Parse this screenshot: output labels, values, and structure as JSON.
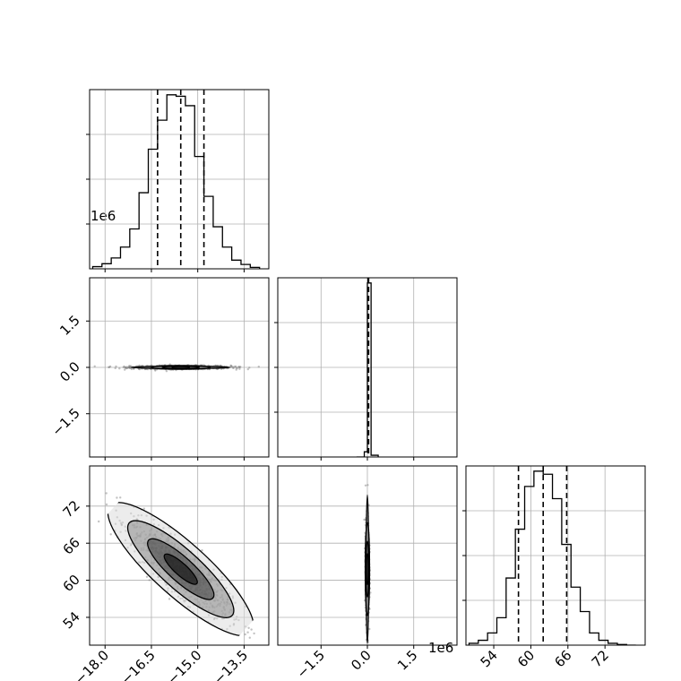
{
  "chart_data": {
    "type": "corner",
    "parameters": 3,
    "offset_label_y": "1e6",
    "offset_label_x": "1e6",
    "grid": true,
    "x_tick_labels": {
      "p0": [
        "−18.0",
        "−16.5",
        "−15.0",
        "−13.5"
      ],
      "p1": [
        "−1.5",
        "0.0",
        "1.5"
      ],
      "p2": [
        "54",
        "60",
        "66",
        "72"
      ]
    },
    "y_tick_labels": {
      "p1": [
        "1.5",
        "0.0",
        "−1.5"
      ],
      "p2": [
        "72",
        "66",
        "60",
        "54"
      ]
    },
    "x_ticks": {
      "p0": [
        -18.0,
        -16.5,
        -15.0,
        -13.5
      ],
      "p1": [
        -1.5,
        0.0,
        1.5
      ],
      "p2": [
        54,
        60,
        66,
        72
      ]
    },
    "y_ticks": {
      "p1": [
        1.5,
        0.0,
        -1.5
      ],
      "p2": [
        72,
        66,
        60,
        54
      ]
    },
    "ranges": {
      "p0": [
        -18.5,
        -12.7
      ],
      "p1": [
        -2.9,
        2.9
      ],
      "p2": [
        49.5,
        78.5
      ]
    },
    "histograms": [
      {
        "parameter": "p0",
        "bin_edges": [
          -18.4,
          -18.1,
          -17.8,
          -17.5,
          -17.2,
          -16.9,
          -16.6,
          -16.3,
          -16.0,
          -15.7,
          -15.4,
          -15.1,
          -14.8,
          -14.5,
          -14.2,
          -13.9,
          -13.6,
          -13.3,
          -13.0
        ],
        "counts": [
          3,
          7,
          15,
          30,
          55,
          105,
          165,
          205,
          240,
          238,
          225,
          155,
          100,
          58,
          30,
          12,
          6,
          2
        ],
        "quantiles": [
          -16.3,
          -15.55,
          -14.8
        ]
      },
      {
        "parameter": "p1",
        "bin_edges": [
          -0.35,
          -0.1,
          0.0,
          0.05,
          0.12,
          0.35
        ],
        "counts": [
          0,
          3,
          100,
          100,
          1
        ],
        "quantiles": [
          0.02,
          0.03,
          0.04
        ]
      },
      {
        "parameter": "p2",
        "bin_edges": [
          50.0,
          51.5,
          53.0,
          54.5,
          56.0,
          57.5,
          59.0,
          60.5,
          62.0,
          63.5,
          65.0,
          66.5,
          68.0,
          69.5,
          71.0,
          72.5,
          74.0,
          75.5,
          77.0
        ],
        "counts": [
          3,
          8,
          20,
          45,
          110,
          190,
          260,
          285,
          280,
          240,
          165,
          95,
          55,
          20,
          8,
          3,
          1,
          0
        ],
        "quantiles": [
          58.0,
          62.0,
          65.8
        ]
      }
    ],
    "scatter_panels": [
      {
        "x": "p0",
        "y": "p1",
        "center": [
          -15.55,
          0.0
        ],
        "spread": [
          0.8,
          0.03
        ],
        "correlation": 0.0,
        "contour_half_axes": [
          [
            0.28,
            0.02
          ],
          [
            0.6,
            0.04
          ],
          [
            0.95,
            0.06
          ],
          [
            1.6,
            0.035
          ]
        ]
      },
      {
        "x": "p0",
        "y": "p2",
        "center": [
          -15.55,
          61.8
        ],
        "spread": [
          0.8,
          3.8
        ],
        "correlation": -0.85,
        "contour_half_axes": [
          [
            0.5,
            0.035
          ],
          [
            1.0,
            0.08
          ],
          [
            1.6,
            0.14
          ],
          [
            2.2,
            0.2
          ]
        ]
      },
      {
        "x": "p1",
        "y": "p2",
        "center": [
          0.0,
          61.8
        ],
        "spread": [
          0.03,
          3.8
        ],
        "correlation": 0.0,
        "contour_half_axes": [
          [
            0.03,
            2.5
          ],
          [
            0.05,
            4.5
          ],
          [
            0.07,
            7.5
          ],
          [
            0.04,
            12.0
          ]
        ]
      }
    ]
  }
}
